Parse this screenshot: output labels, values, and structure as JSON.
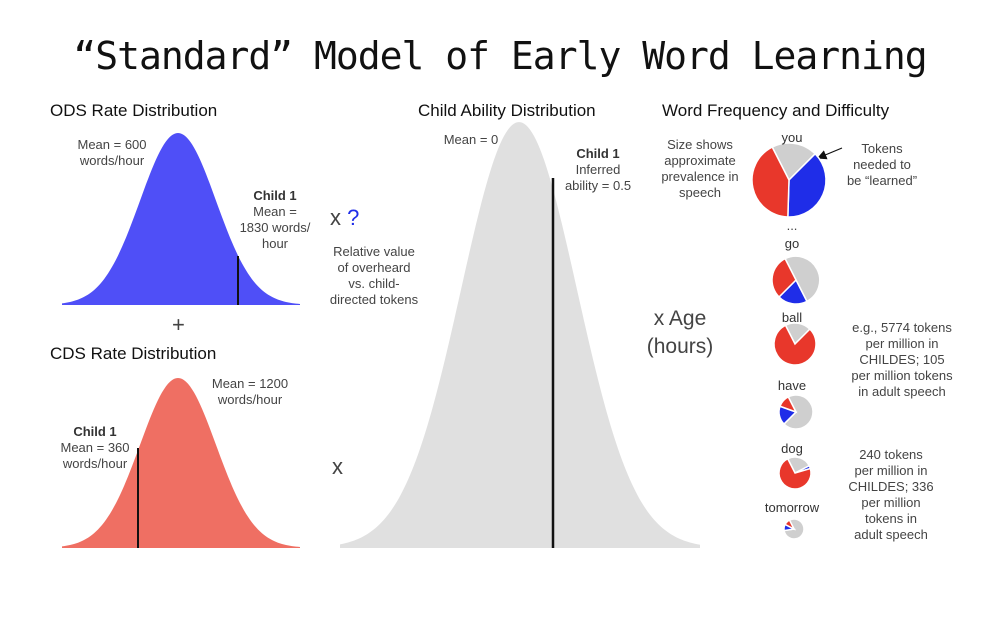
{
  "title": "“Standard” Model of Early Word Learning",
  "ods": {
    "heading": "ODS Rate Distribution",
    "mean_line1": "Mean = 600",
    "mean_line2": "words/hour",
    "child_name": "Child 1",
    "child_line1": "Mean =",
    "child_line2": "1830 words/",
    "child_line3": "hour",
    "color": "#4f4ff7"
  },
  "plus": "+",
  "cds": {
    "heading": "CDS Rate Distribution",
    "mean_line1": "Mean = 1200",
    "mean_line2": "words/hour",
    "child_name": "Child 1",
    "child_line1": "Mean = 360",
    "child_line2": "words/hour",
    "color": "#ef6f63"
  },
  "multiplier1": {
    "x": "x",
    "q": "?",
    "note_lines": [
      "Relative value",
      "of overheard",
      "vs. child-",
      "directed tokens"
    ]
  },
  "multiplier2": {
    "x": "x"
  },
  "ability": {
    "heading": "Child Ability Distribution",
    "mean_label": "Mean = 0",
    "child_name": "Child 1",
    "child_line1": "Inferred",
    "child_line2": "ability = 0.5",
    "color": "#e0e0e0"
  },
  "age": {
    "line1": "x Age",
    "line2": "(hours)"
  },
  "freq": {
    "heading": "Word Frequency and Difficulty",
    "size_note_lines": [
      "Size shows",
      "approximate",
      "prevalence in",
      "speech"
    ],
    "tokens_note_lines": [
      "Tokens",
      "needed to",
      "be “learned”"
    ],
    "ellipsis": "...",
    "ball_note_lines": [
      "e.g., 5774 tokens",
      "per million in",
      "CHILDES; 105",
      "per million tokens",
      "in adult speech"
    ],
    "dog_note_lines": [
      "240 tokens",
      "per million in",
      "CHILDES; 336",
      "per million",
      "tokens in",
      "adult speech"
    ],
    "colors": {
      "red": "#e8372b",
      "blue": "#1f2de8",
      "gray": "#cfcfcf"
    },
    "pies": [
      {
        "word": "you",
        "red": 0.42,
        "blue": 0.38,
        "gray": 0.2
      },
      {
        "word": "go",
        "red": 0.3,
        "blue": 0.2,
        "gray": 0.5
      },
      {
        "word": "ball",
        "red": 0.8,
        "blue": 0.0,
        "gray": 0.2
      },
      {
        "word": "have",
        "red": 0.12,
        "blue": 0.18,
        "gray": 0.7
      },
      {
        "word": "dog",
        "red": 0.72,
        "blue": 0.03,
        "gray": 0.25
      },
      {
        "word": "tomorrow",
        "red": 0.1,
        "blue": 0.1,
        "gray": 0.8
      }
    ]
  }
}
